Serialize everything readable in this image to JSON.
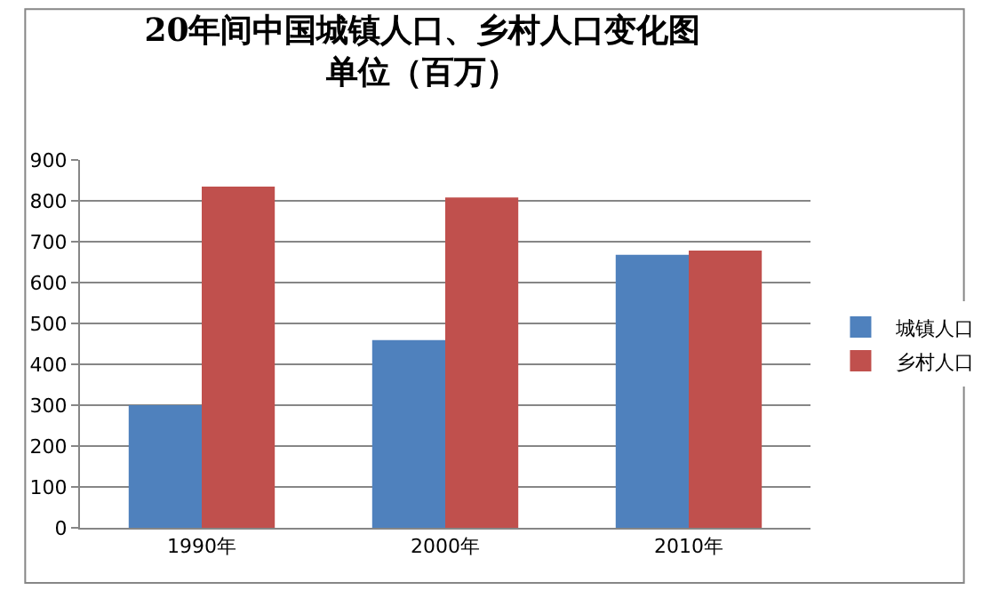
{
  "chart_data": {
    "type": "bar",
    "title": "20年间中国城镇人口、乡村人口变化图",
    "subtitle": "单位（百万）",
    "categories": [
      "1990年",
      "2000年",
      "2010年"
    ],
    "series": [
      {
        "name": "城镇人口",
        "color": "#4f81bd",
        "values": [
          300,
          459,
          668
        ]
      },
      {
        "name": "乡村人口",
        "color": "#c0504d",
        "values": [
          835,
          808,
          678
        ]
      }
    ],
    "ylim": [
      0,
      900
    ],
    "yticks": [
      0,
      100,
      200,
      300,
      400,
      500,
      600,
      700,
      800,
      900
    ],
    "grid": "y",
    "legend": "right"
  }
}
